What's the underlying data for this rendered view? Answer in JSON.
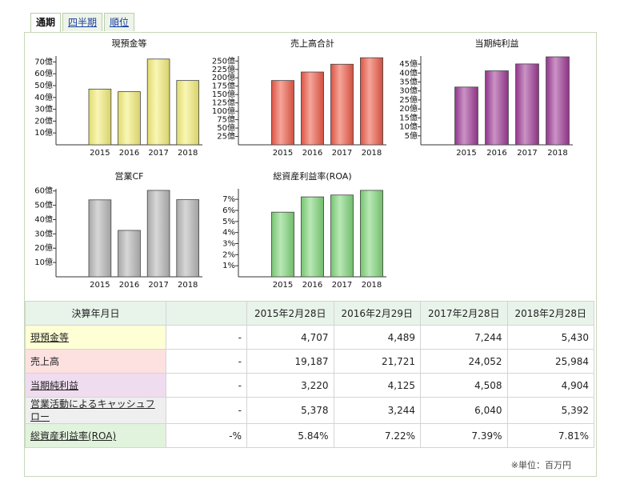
{
  "tabs": [
    {
      "label": "通期",
      "active": true
    },
    {
      "label": "四半期",
      "active": false
    },
    {
      "label": "順位",
      "active": false
    }
  ],
  "chart_data": [
    {
      "type": "bar",
      "title": "現預金等",
      "categories": [
        "2015",
        "2016",
        "2017",
        "2018"
      ],
      "values": [
        4707,
        4489,
        7244,
        5430
      ],
      "ylim": [
        0,
        7500
      ],
      "yticks": [
        1000,
        2000,
        3000,
        4000,
        5000,
        6000,
        7000
      ],
      "ytick_labels": [
        "10億",
        "20億",
        "30億",
        "40億",
        "50億",
        "60億",
        "70億"
      ],
      "color": "#f4ee78"
    },
    {
      "type": "bar",
      "title": "売上高合計",
      "categories": [
        "2015",
        "2016",
        "2017",
        "2018"
      ],
      "values": [
        19187,
        21721,
        24052,
        25984
      ],
      "ylim": [
        0,
        26500
      ],
      "yticks": [
        2500,
        5000,
        7500,
        10000,
        12500,
        15000,
        17500,
        20000,
        22500,
        25000
      ],
      "ytick_labels": [
        "25億",
        "50億",
        "75億",
        "100億",
        "125億",
        "150億",
        "175億",
        "200億",
        "225億",
        "250億"
      ],
      "color": "#ee5b48"
    },
    {
      "type": "bar",
      "title": "当期純利益",
      "categories": [
        "2015",
        "2016",
        "2017",
        "2018"
      ],
      "values": [
        3220,
        4125,
        4508,
        4904
      ],
      "ylim": [
        0,
        4950
      ],
      "yticks": [
        500,
        1000,
        1500,
        2000,
        2500,
        3000,
        3500,
        4000,
        4500
      ],
      "ytick_labels": [
        "5億",
        "10億",
        "15億",
        "20億",
        "25億",
        "30億",
        "35億",
        "40億",
        "45億"
      ],
      "color": "#9e3a96"
    },
    {
      "type": "bar",
      "title": "営業CF",
      "categories": [
        "2015",
        "2016",
        "2017",
        "2018"
      ],
      "values": [
        5378,
        3244,
        6040,
        5392
      ],
      "ylim": [
        0,
        6150
      ],
      "yticks": [
        1000,
        2000,
        3000,
        4000,
        5000,
        6000
      ],
      "ytick_labels": [
        "10億",
        "20億",
        "30億",
        "40億",
        "50億",
        "60億"
      ],
      "color": "#b6b6b6"
    },
    {
      "type": "bar",
      "title": "総資産利益率(ROA)",
      "categories": [
        "2015",
        "2016",
        "2017",
        "2018"
      ],
      "values": [
        5.84,
        7.22,
        7.39,
        7.81
      ],
      "ylim": [
        0,
        7.95
      ],
      "yticks": [
        1,
        2,
        3,
        4,
        5,
        6,
        7
      ],
      "ytick_labels": [
        "1%",
        "2%",
        "3%",
        "4%",
        "5%",
        "6%",
        "7%"
      ],
      "color": "#7fd67a"
    }
  ],
  "table": {
    "header": [
      "決算年月日",
      "",
      "2015年2月28日",
      "2016年2月29日",
      "2017年2月28日",
      "2018年2月28日"
    ],
    "rows": [
      {
        "label": "現預金等",
        "prev": "-",
        "values": [
          "4,707",
          "4,489",
          "7,244",
          "5,430"
        ]
      },
      {
        "label": "売上高",
        "prev": "-",
        "values": [
          "19,187",
          "21,721",
          "24,052",
          "25,984"
        ]
      },
      {
        "label": "当期純利益",
        "prev": "-",
        "values": [
          "3,220",
          "4,125",
          "4,508",
          "4,904"
        ]
      },
      {
        "label": "営業活動によるキャッシュフロー",
        "prev": "-",
        "values": [
          "5,378",
          "3,244",
          "6,040",
          "5,392"
        ]
      },
      {
        "label": "総資産利益率(ROA)",
        "prev": "-%",
        "values": [
          "5.84%",
          "7.22%",
          "7.39%",
          "7.81%"
        ]
      }
    ]
  },
  "unit_note": "※単位：百万円"
}
